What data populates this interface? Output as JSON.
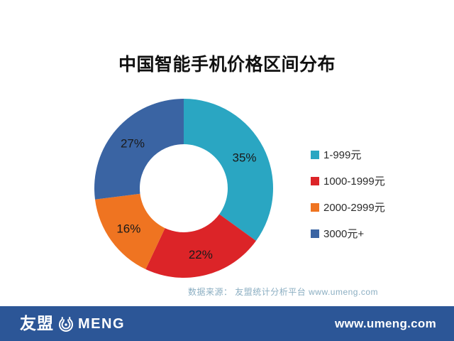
{
  "title": "中国智能手机价格区间分布",
  "chart_data": {
    "type": "pie",
    "style": "donut",
    "title": "中国智能手机价格区间分布",
    "categories": [
      "1-999元",
      "1000-1999元",
      "2000-2999元",
      "3000元+"
    ],
    "values": [
      35,
      22,
      16,
      27
    ],
    "unit": "%",
    "labels": [
      "35%",
      "22%",
      "16%",
      "27%"
    ],
    "colors": [
      "#2AA6C2",
      "#DC2428",
      "#EF7421",
      "#3A64A3"
    ],
    "legend_position": "right",
    "start_angle_deg": 0,
    "direction": "clockwise",
    "label_color": "#1A1A1A"
  },
  "source_note": "数据来源： 友盟统计分析平台 www.umeng.com",
  "footer": {
    "logo_cn": "友盟",
    "logo_en": "MENG",
    "url": "www.umeng.com",
    "background_color": "#2C5697"
  },
  "colors": {
    "background": "#FFFFFF",
    "title_text": "#111111",
    "legend_text": "#2B2B2B",
    "source_text": "#8BAEC2"
  }
}
